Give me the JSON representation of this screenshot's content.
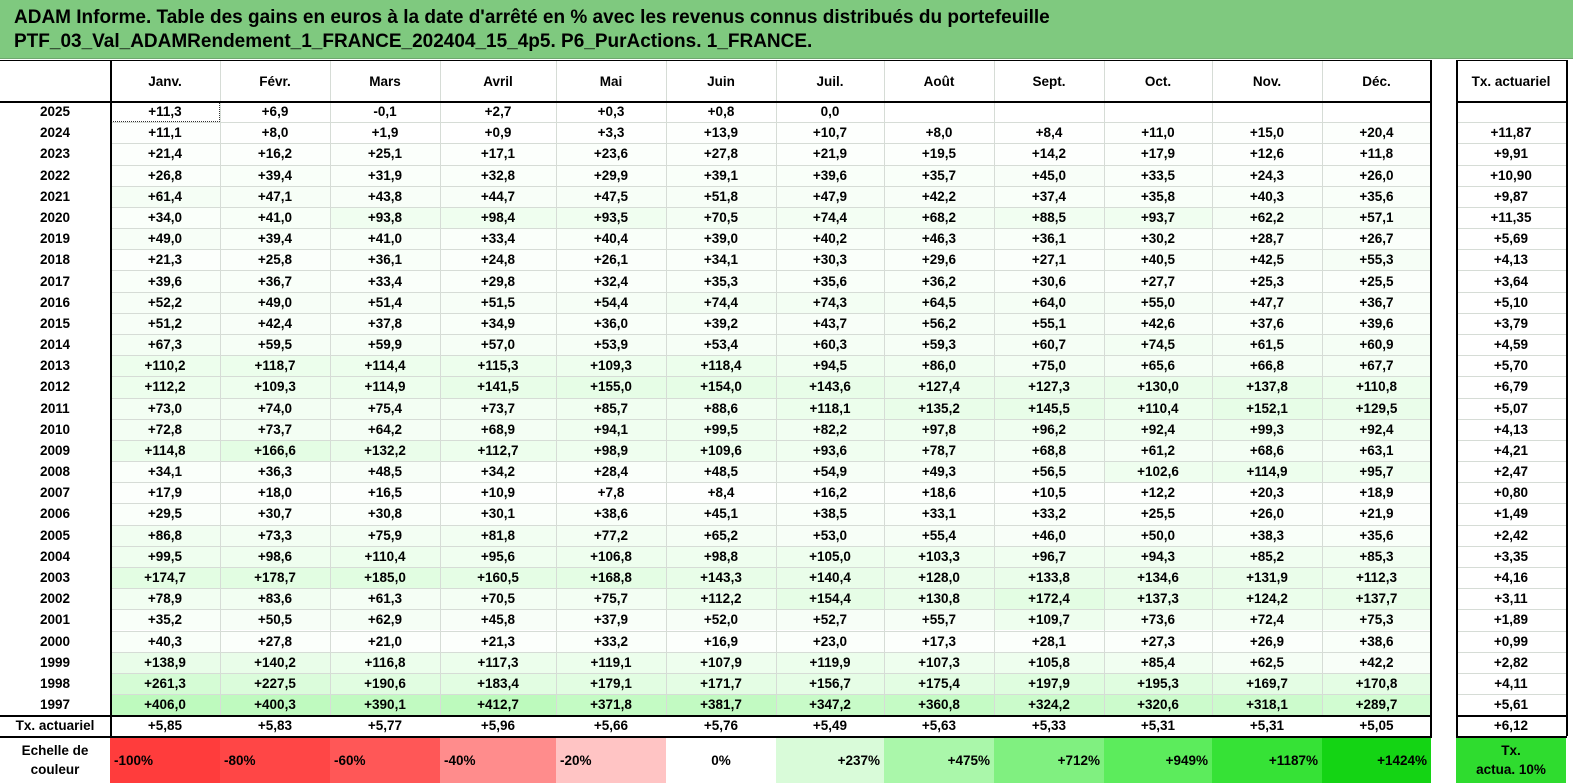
{
  "title": {
    "line1": "ADAM Informe. Table des gains en euros à la date d'arrêté en % avec les revenus connus distribués du portefeuille",
    "line2": "PTF_03_Val_ADAMRendement_1_FRANCE_202404_15_4p5. P6_PurActions. 1_FRANCE."
  },
  "months": [
    "Janv.",
    "Févr.",
    "Mars",
    "Avril",
    "Mai",
    "Juin",
    "Juil.",
    "Août",
    "Sept.",
    "Oct.",
    "Nov.",
    "Déc."
  ],
  "actuarial_header": "Tx. actuariel",
  "rows": [
    {
      "year": "2025",
      "values": [
        "+11,3",
        "+6,9",
        "-0,1",
        "+2,7",
        "+0,3",
        "+0,8",
        "0,0",
        "",
        "",
        "",
        "",
        ""
      ],
      "rate": ""
    },
    {
      "year": "2024",
      "values": [
        "+11,1",
        "+8,0",
        "+1,9",
        "+0,9",
        "+3,3",
        "+13,9",
        "+10,7",
        "+8,0",
        "+8,4",
        "+11,0",
        "+15,0",
        "+20,4"
      ],
      "rate": "+11,87"
    },
    {
      "year": "2023",
      "values": [
        "+21,4",
        "+16,2",
        "+25,1",
        "+17,1",
        "+23,6",
        "+27,8",
        "+21,9",
        "+19,5",
        "+14,2",
        "+17,9",
        "+12,6",
        "+11,8"
      ],
      "rate": "+9,91"
    },
    {
      "year": "2022",
      "values": [
        "+26,8",
        "+39,4",
        "+31,9",
        "+32,8",
        "+29,9",
        "+39,1",
        "+39,6",
        "+35,7",
        "+45,0",
        "+33,5",
        "+24,3",
        "+26,0"
      ],
      "rate": "+10,90"
    },
    {
      "year": "2021",
      "values": [
        "+61,4",
        "+47,1",
        "+43,8",
        "+44,7",
        "+47,5",
        "+51,8",
        "+47,9",
        "+42,2",
        "+37,4",
        "+35,8",
        "+40,3",
        "+35,6"
      ],
      "rate": "+9,87"
    },
    {
      "year": "2020",
      "values": [
        "+34,0",
        "+41,0",
        "+93,8",
        "+98,4",
        "+93,5",
        "+70,5",
        "+74,4",
        "+68,2",
        "+88,5",
        "+93,7",
        "+62,2",
        "+57,1"
      ],
      "rate": "+11,35"
    },
    {
      "year": "2019",
      "values": [
        "+49,0",
        "+39,4",
        "+41,0",
        "+33,4",
        "+40,4",
        "+39,0",
        "+40,2",
        "+46,3",
        "+36,1",
        "+30,2",
        "+28,7",
        "+26,7"
      ],
      "rate": "+5,69"
    },
    {
      "year": "2018",
      "values": [
        "+21,3",
        "+25,8",
        "+36,1",
        "+24,8",
        "+26,1",
        "+34,1",
        "+30,3",
        "+29,6",
        "+27,1",
        "+40,5",
        "+42,5",
        "+55,3"
      ],
      "rate": "+4,13"
    },
    {
      "year": "2017",
      "values": [
        "+39,6",
        "+36,7",
        "+33,4",
        "+29,8",
        "+32,4",
        "+35,3",
        "+35,6",
        "+36,2",
        "+30,6",
        "+27,7",
        "+25,3",
        "+25,5"
      ],
      "rate": "+3,64"
    },
    {
      "year": "2016",
      "values": [
        "+52,2",
        "+49,0",
        "+51,4",
        "+51,5",
        "+54,4",
        "+74,4",
        "+74,3",
        "+64,5",
        "+64,0",
        "+55,0",
        "+47,7",
        "+36,7"
      ],
      "rate": "+5,10"
    },
    {
      "year": "2015",
      "values": [
        "+51,2",
        "+42,4",
        "+37,8",
        "+34,9",
        "+36,0",
        "+39,2",
        "+43,7",
        "+56,2",
        "+55,1",
        "+42,6",
        "+37,6",
        "+39,6"
      ],
      "rate": "+3,79"
    },
    {
      "year": "2014",
      "values": [
        "+67,3",
        "+59,5",
        "+59,9",
        "+57,0",
        "+53,9",
        "+53,4",
        "+60,3",
        "+59,3",
        "+60,7",
        "+74,5",
        "+61,5",
        "+60,9"
      ],
      "rate": "+4,59"
    },
    {
      "year": "2013",
      "values": [
        "+110,2",
        "+118,7",
        "+114,4",
        "+115,3",
        "+109,3",
        "+118,4",
        "+94,5",
        "+86,0",
        "+75,0",
        "+65,6",
        "+66,8",
        "+67,7"
      ],
      "rate": "+5,70"
    },
    {
      "year": "2012",
      "values": [
        "+112,2",
        "+109,3",
        "+114,9",
        "+141,5",
        "+155,0",
        "+154,0",
        "+143,6",
        "+127,4",
        "+127,3",
        "+130,0",
        "+137,8",
        "+110,8"
      ],
      "rate": "+6,79"
    },
    {
      "year": "2011",
      "values": [
        "+73,0",
        "+74,0",
        "+75,4",
        "+73,7",
        "+85,7",
        "+88,6",
        "+118,1",
        "+135,2",
        "+145,5",
        "+110,4",
        "+152,1",
        "+129,5"
      ],
      "rate": "+5,07"
    },
    {
      "year": "2010",
      "values": [
        "+72,8",
        "+73,7",
        "+64,2",
        "+68,9",
        "+94,1",
        "+99,5",
        "+82,2",
        "+97,8",
        "+96,2",
        "+92,4",
        "+99,3",
        "+92,4"
      ],
      "rate": "+4,13"
    },
    {
      "year": "2009",
      "values": [
        "+114,8",
        "+166,6",
        "+132,2",
        "+112,7",
        "+98,9",
        "+109,6",
        "+93,6",
        "+78,7",
        "+68,8",
        "+61,2",
        "+68,6",
        "+63,1"
      ],
      "rate": "+4,21"
    },
    {
      "year": "2008",
      "values": [
        "+34,1",
        "+36,3",
        "+48,5",
        "+34,2",
        "+28,4",
        "+48,5",
        "+54,9",
        "+49,3",
        "+56,5",
        "+102,6",
        "+114,9",
        "+95,7"
      ],
      "rate": "+2,47"
    },
    {
      "year": "2007",
      "values": [
        "+17,9",
        "+18,0",
        "+16,5",
        "+10,9",
        "+7,8",
        "+8,4",
        "+16,2",
        "+18,6",
        "+10,5",
        "+12,2",
        "+20,3",
        "+18,9"
      ],
      "rate": "+0,80"
    },
    {
      "year": "2006",
      "values": [
        "+29,5",
        "+30,7",
        "+30,8",
        "+30,1",
        "+38,6",
        "+45,1",
        "+38,5",
        "+33,1",
        "+33,2",
        "+25,5",
        "+26,0",
        "+21,9"
      ],
      "rate": "+1,49"
    },
    {
      "year": "2005",
      "values": [
        "+86,8",
        "+73,3",
        "+75,9",
        "+81,8",
        "+77,2",
        "+65,2",
        "+53,0",
        "+55,4",
        "+46,0",
        "+50,0",
        "+38,3",
        "+35,6"
      ],
      "rate": "+2,42"
    },
    {
      "year": "2004",
      "values": [
        "+99,5",
        "+98,6",
        "+110,4",
        "+95,6",
        "+106,8",
        "+98,8",
        "+105,0",
        "+103,3",
        "+96,7",
        "+94,3",
        "+85,2",
        "+85,3"
      ],
      "rate": "+3,35"
    },
    {
      "year": "2003",
      "values": [
        "+174,7",
        "+178,7",
        "+185,0",
        "+160,5",
        "+168,8",
        "+143,3",
        "+140,4",
        "+128,0",
        "+133,8",
        "+134,6",
        "+131,9",
        "+112,3"
      ],
      "rate": "+4,16"
    },
    {
      "year": "2002",
      "values": [
        "+78,9",
        "+83,6",
        "+61,3",
        "+70,5",
        "+75,7",
        "+112,2",
        "+154,4",
        "+130,8",
        "+172,4",
        "+137,3",
        "+124,2",
        "+137,7"
      ],
      "rate": "+3,11"
    },
    {
      "year": "2001",
      "values": [
        "+35,2",
        "+50,5",
        "+62,9",
        "+45,8",
        "+37,9",
        "+52,0",
        "+52,7",
        "+55,7",
        "+109,7",
        "+73,6",
        "+72,4",
        "+75,3"
      ],
      "rate": "+1,89"
    },
    {
      "year": "2000",
      "values": [
        "+40,3",
        "+27,8",
        "+21,0",
        "+21,3",
        "+33,2",
        "+16,9",
        "+23,0",
        "+17,3",
        "+28,1",
        "+27,3",
        "+26,9",
        "+38,6"
      ],
      "rate": "+0,99"
    },
    {
      "year": "1999",
      "values": [
        "+138,9",
        "+140,2",
        "+116,8",
        "+117,3",
        "+119,1",
        "+107,9",
        "+119,9",
        "+107,3",
        "+105,8",
        "+85,4",
        "+62,5",
        "+42,2"
      ],
      "rate": "+2,82"
    },
    {
      "year": "1998",
      "values": [
        "+261,3",
        "+227,5",
        "+190,6",
        "+183,4",
        "+179,1",
        "+171,7",
        "+156,7",
        "+175,4",
        "+197,9",
        "+195,3",
        "+169,7",
        "+170,8"
      ],
      "rate": "+4,11"
    },
    {
      "year": "1997",
      "values": [
        "+406,0",
        "+400,3",
        "+390,1",
        "+412,7",
        "+371,8",
        "+381,7",
        "+347,2",
        "+360,8",
        "+324,2",
        "+320,6",
        "+318,1",
        "+289,7"
      ],
      "rate": "+5,61"
    }
  ],
  "actuarial_row": {
    "label": "Tx. actuariel",
    "values": [
      "+5,85",
      "+5,83",
      "+5,77",
      "+5,96",
      "+5,66",
      "+5,76",
      "+5,49",
      "+5,63",
      "+5,33",
      "+5,31",
      "+5,31",
      "+5,05"
    ],
    "rate": "+6,12"
  },
  "color_scale": {
    "label_line1": "Echelle de",
    "label_line2": "couleur",
    "steps": [
      {
        "label": "-100%",
        "color": "#ff3c3c"
      },
      {
        "label": "-80%",
        "color": "#ff4646"
      },
      {
        "label": "-60%",
        "color": "#ff5757"
      },
      {
        "label": "-40%",
        "color": "#ff8c8c"
      },
      {
        "label": "-20%",
        "color": "#ffc4c4"
      },
      {
        "label": "0%",
        "color": "#ffffff"
      },
      {
        "label": "+237%",
        "color": "#d9fbd9"
      },
      {
        "label": "+475%",
        "color": "#aaf7aa"
      },
      {
        "label": "+712%",
        "color": "#80f080"
      },
      {
        "label": "+949%",
        "color": "#5cec5c"
      },
      {
        "label": "+1187%",
        "color": "#36e236"
      },
      {
        "label": "+1424%",
        "color": "#14d414"
      }
    ],
    "rate_label_line1": "Tx.",
    "rate_label_line2": "actua. 10%",
    "rate_color": "#2fdc2f"
  }
}
